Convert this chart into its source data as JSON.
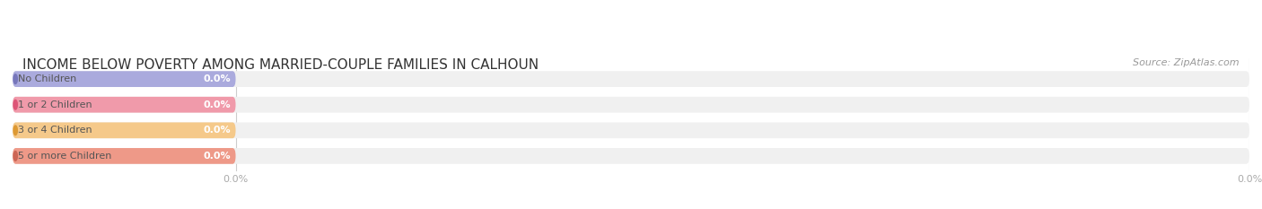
{
  "title": "INCOME BELOW POVERTY AMONG MARRIED-COUPLE FAMILIES IN CALHOUN",
  "source": "Source: ZipAtlas.com",
  "categories": [
    "No Children",
    "1 or 2 Children",
    "3 or 4 Children",
    "5 or more Children"
  ],
  "values": [
    0.0,
    0.0,
    0.0,
    0.0
  ],
  "bar_colors": [
    "#aaaadd",
    "#f09aaa",
    "#f5c98a",
    "#ee9988"
  ],
  "bar_bg_color": "#f0f0f0",
  "dot_colors": [
    "#7777bb",
    "#dd5577",
    "#dd9933",
    "#cc6655"
  ],
  "title_fontsize": 11,
  "source_fontsize": 8,
  "bar_height": 0.62,
  "fig_bg_color": "#ffffff",
  "axes_bg_color": "#ffffff",
  "label_text_color": "#555555",
  "value_text_color": "#ffffff",
  "tick_color": "#aaaaaa",
  "gridline_color": "#cccccc"
}
